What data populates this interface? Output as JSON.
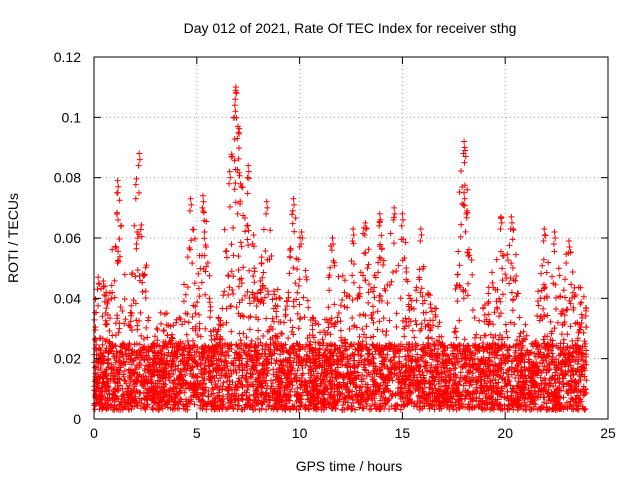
{
  "chart_data": {
    "type": "scatter",
    "title": "Day 012 of 2021, Rate Of TEC Index for receiver sthg",
    "xlabel": "GPS time / hours",
    "ylabel": "ROTI / TECUs",
    "xlim": [
      0,
      25
    ],
    "ylim": [
      0,
      0.12
    ],
    "xticks": [
      0,
      5,
      10,
      15,
      20,
      25
    ],
    "xtick_labels": [
      "0",
      "5",
      "10",
      "15",
      "20",
      "25"
    ],
    "yticks": [
      0,
      0.02,
      0.04,
      0.06,
      0.08,
      0.1,
      0.12
    ],
    "ytick_labels": [
      "0",
      "0.02",
      "0.04",
      "0.06",
      "0.08",
      "0.1",
      "0.12"
    ],
    "grid": true,
    "marker": "+",
    "marker_color": "#ff0000",
    "series": [
      {
        "name": "ROTI",
        "x_range": [
          0,
          23.95
        ],
        "baseline_range": [
          0.003,
          0.025
        ],
        "notable_peaks": [
          {
            "x": 0.2,
            "y": 0.047
          },
          {
            "x": 1.15,
            "y": 0.079
          },
          {
            "x": 2.1,
            "y": 0.062
          },
          {
            "x": 2.2,
            "y": 0.088
          },
          {
            "x": 4.7,
            "y": 0.073
          },
          {
            "x": 5.3,
            "y": 0.074
          },
          {
            "x": 6.6,
            "y": 0.082
          },
          {
            "x": 6.9,
            "y": 0.11
          },
          {
            "x": 6.85,
            "y": 0.104
          },
          {
            "x": 7.0,
            "y": 0.097
          },
          {
            "x": 7.5,
            "y": 0.084
          },
          {
            "x": 8.4,
            "y": 0.072
          },
          {
            "x": 9.7,
            "y": 0.073
          },
          {
            "x": 10.1,
            "y": 0.062
          },
          {
            "x": 11.6,
            "y": 0.06
          },
          {
            "x": 12.6,
            "y": 0.063
          },
          {
            "x": 13.2,
            "y": 0.065
          },
          {
            "x": 13.9,
            "y": 0.068
          },
          {
            "x": 14.6,
            "y": 0.07
          },
          {
            "x": 15.0,
            "y": 0.068
          },
          {
            "x": 15.9,
            "y": 0.063
          },
          {
            "x": 18.0,
            "y": 0.092
          },
          {
            "x": 18.05,
            "y": 0.089
          },
          {
            "x": 18.0,
            "y": 0.075
          },
          {
            "x": 19.8,
            "y": 0.067
          },
          {
            "x": 20.3,
            "y": 0.067
          },
          {
            "x": 21.9,
            "y": 0.063
          },
          {
            "x": 22.4,
            "y": 0.062
          },
          {
            "x": 23.1,
            "y": 0.059
          }
        ]
      }
    ]
  }
}
